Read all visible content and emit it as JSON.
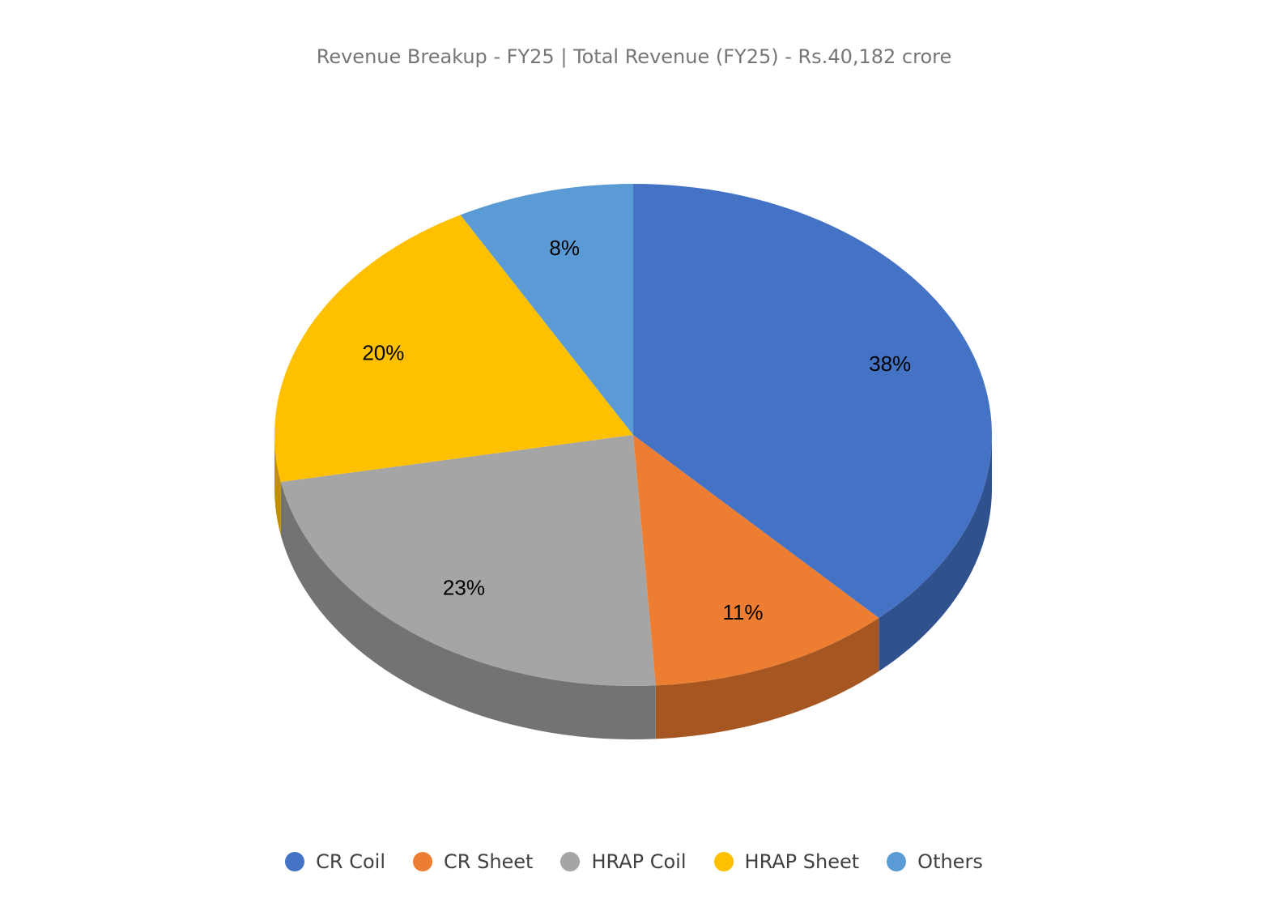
{
  "chart_data": {
    "type": "pie",
    "style": "3d",
    "title": "Revenue Breakup - FY25 | Total Revenue (FY25) - Rs.40,182 crore",
    "categories": [
      "CR Coil",
      "CR Sheet",
      "HRAP Coil",
      "HRAP Sheet",
      "Others"
    ],
    "values": [
      38,
      11,
      23,
      20,
      8
    ],
    "data_labels": [
      "38%",
      "11%",
      "23%",
      "20%",
      "8%"
    ],
    "colors": [
      "#4472C4",
      "#ED7D31",
      "#A5A5A5",
      "#FFC000",
      "#5B9BD5"
    ],
    "side_colors": [
      "#2F528F",
      "#A65620",
      "#737373",
      "#BF9000",
      "#41729F"
    ],
    "legend_position": "bottom"
  }
}
